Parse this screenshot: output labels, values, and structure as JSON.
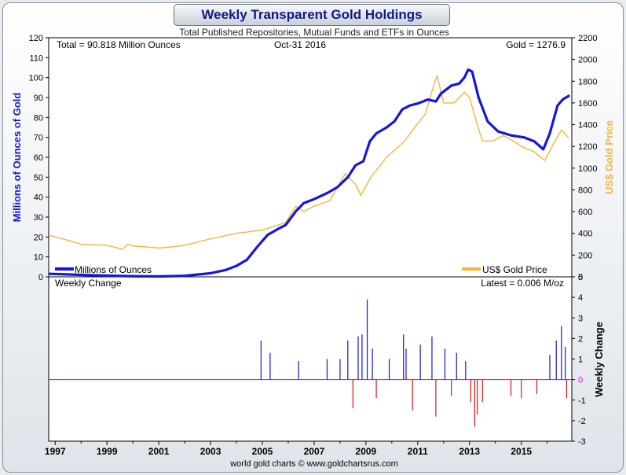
{
  "chart_data": {
    "type": "line",
    "title": "Weekly Transparent Gold Holdings",
    "subtitle": "Total Published Repositories, Mutual Funds and ETFs in Ounces",
    "info": {
      "total": "Total = 90.818 Million Ounces",
      "date": "Oct-31  2016",
      "gold": "Gold = 1276.9",
      "latest": "Latest = 0.006 M/oz"
    },
    "ylabel_left": "Millions of Ounces of Gold",
    "ylabel_right": "US$ Gold Price",
    "ylabel_lower": "Weekly Change",
    "lower_panel_title": "Weekly Change",
    "footer": "world gold charts © www.goldchartsrus.com",
    "x_ticks": [
      "1997",
      "1999",
      "2001",
      "2003",
      "2005",
      "2007",
      "2009",
      "2011",
      "2013",
      "2015"
    ],
    "xlim": [
      1996.75,
      2016.95
    ],
    "ylim_holdings": [
      0,
      120
    ],
    "ylim_price": [
      0,
      2200
    ],
    "ylim_change": [
      -3,
      5
    ],
    "yticks_holdings": [
      "0",
      "10",
      "20",
      "30",
      "40",
      "50",
      "60",
      "70",
      "80",
      "90",
      "100",
      "110",
      "120"
    ],
    "yticks_price": [
      "0",
      "200",
      "400",
      "600",
      "800",
      "1000",
      "1200",
      "1400",
      "1600",
      "1800",
      "2000",
      "2200"
    ],
    "yticks_change": [
      "-3",
      "-2",
      "-1",
      "0",
      "1",
      "2",
      "3",
      "4",
      "5"
    ],
    "grid": false,
    "legend": [
      "Millions of Ounces",
      "US$ Gold Price"
    ],
    "series": [
      {
        "name": "Millions of Ounces",
        "color": "#1515e0",
        "points": [
          [
            1996.8,
            1.5
          ],
          [
            1998.0,
            1.0
          ],
          [
            1999.0,
            0.6
          ],
          [
            2000.0,
            0.3
          ],
          [
            2001.0,
            0.2
          ],
          [
            2002.0,
            0.5
          ],
          [
            2003.0,
            1.8
          ],
          [
            2003.6,
            3.5
          ],
          [
            2004.0,
            5.5
          ],
          [
            2004.4,
            8.5
          ],
          [
            2004.8,
            15
          ],
          [
            2005.2,
            21
          ],
          [
            2005.6,
            24
          ],
          [
            2005.9,
            26
          ],
          [
            2006.3,
            33
          ],
          [
            2006.6,
            37
          ],
          [
            2007.0,
            39
          ],
          [
            2007.5,
            42
          ],
          [
            2007.9,
            45
          ],
          [
            2008.3,
            50
          ],
          [
            2008.6,
            56
          ],
          [
            2008.9,
            58
          ],
          [
            2009.0,
            62
          ],
          [
            2009.15,
            68
          ],
          [
            2009.4,
            72
          ],
          [
            2009.8,
            75
          ],
          [
            2010.1,
            78
          ],
          [
            2010.4,
            84
          ],
          [
            2010.7,
            86
          ],
          [
            2011.0,
            87
          ],
          [
            2011.4,
            89
          ],
          [
            2011.7,
            88
          ],
          [
            2011.9,
            92
          ],
          [
            2012.3,
            96
          ],
          [
            2012.6,
            97
          ],
          [
            2012.8,
            100
          ],
          [
            2012.95,
            104
          ],
          [
            2013.1,
            103
          ],
          [
            2013.35,
            90
          ],
          [
            2013.7,
            78
          ],
          [
            2014.1,
            73
          ],
          [
            2014.6,
            71
          ],
          [
            2015.1,
            70
          ],
          [
            2015.5,
            68
          ],
          [
            2015.85,
            64
          ],
          [
            2016.1,
            72
          ],
          [
            2016.4,
            86
          ],
          [
            2016.6,
            89
          ],
          [
            2016.83,
            90.8
          ]
        ]
      },
      {
        "name": "US$ Gold Price",
        "color": "#f5b637",
        "points": [
          [
            1996.8,
            380
          ],
          [
            1997.5,
            335
          ],
          [
            1998.0,
            300
          ],
          [
            1999.0,
            290
          ],
          [
            1999.6,
            255
          ],
          [
            1999.8,
            300
          ],
          [
            2000.0,
            285
          ],
          [
            2001.0,
            265
          ],
          [
            2001.5,
            275
          ],
          [
            2002.0,
            290
          ],
          [
            2002.5,
            320
          ],
          [
            2003.0,
            350
          ],
          [
            2004.0,
            400
          ],
          [
            2005.0,
            430
          ],
          [
            2005.9,
            500
          ],
          [
            2006.3,
            650
          ],
          [
            2006.6,
            600
          ],
          [
            2007.0,
            650
          ],
          [
            2007.6,
            700
          ],
          [
            2008.2,
            950
          ],
          [
            2008.6,
            850
          ],
          [
            2008.8,
            750
          ],
          [
            2009.2,
            920
          ],
          [
            2009.8,
            1100
          ],
          [
            2010.5,
            1250
          ],
          [
            2010.9,
            1380
          ],
          [
            2011.3,
            1500
          ],
          [
            2011.6,
            1750
          ],
          [
            2011.75,
            1850
          ],
          [
            2012.0,
            1600
          ],
          [
            2012.4,
            1600
          ],
          [
            2012.8,
            1700
          ],
          [
            2013.0,
            1650
          ],
          [
            2013.3,
            1400
          ],
          [
            2013.5,
            1250
          ],
          [
            2013.9,
            1250
          ],
          [
            2014.3,
            1300
          ],
          [
            2014.7,
            1250
          ],
          [
            2015.0,
            1200
          ],
          [
            2015.5,
            1150
          ],
          [
            2015.9,
            1070
          ],
          [
            2016.3,
            1250
          ],
          [
            2016.55,
            1350
          ],
          [
            2016.75,
            1300
          ],
          [
            2016.83,
            1276.9
          ]
        ]
      }
    ],
    "weekly_change_series": {
      "name": "Weekly Change",
      "positive_color": "#1515e0",
      "negative_color": "#e01515",
      "spikes": [
        [
          2004.95,
          1.9
        ],
        [
          2005.3,
          1.3
        ],
        [
          2006.4,
          0.9
        ],
        [
          2007.5,
          1.0
        ],
        [
          2008.0,
          1.0
        ],
        [
          2008.3,
          1.9
        ],
        [
          2008.7,
          2.1
        ],
        [
          2008.85,
          2.2
        ],
        [
          2009.05,
          3.9
        ],
        [
          2009.25,
          1.5
        ],
        [
          2009.9,
          1.0
        ],
        [
          2010.45,
          2.2
        ],
        [
          2010.55,
          1.5
        ],
        [
          2011.1,
          1.7
        ],
        [
          2011.55,
          2.1
        ],
        [
          2012.05,
          1.5
        ],
        [
          2012.5,
          1.3
        ],
        [
          2012.85,
          0.9
        ],
        [
          2016.1,
          1.2
        ],
        [
          2016.35,
          1.9
        ],
        [
          2016.55,
          2.6
        ],
        [
          2016.7,
          1.6
        ],
        [
          2008.5,
          -1.4
        ],
        [
          2009.4,
          -0.9
        ],
        [
          2010.8,
          -1.5
        ],
        [
          2011.7,
          -1.8
        ],
        [
          2012.3,
          -0.8
        ],
        [
          2013.05,
          -1.1
        ],
        [
          2013.2,
          -2.3
        ],
        [
          2013.3,
          -1.7
        ],
        [
          2013.5,
          -1.1
        ],
        [
          2014.6,
          -0.8
        ],
        [
          2015.0,
          -0.9
        ],
        [
          2015.6,
          -0.7
        ],
        [
          2016.75,
          -0.9
        ]
      ]
    }
  }
}
